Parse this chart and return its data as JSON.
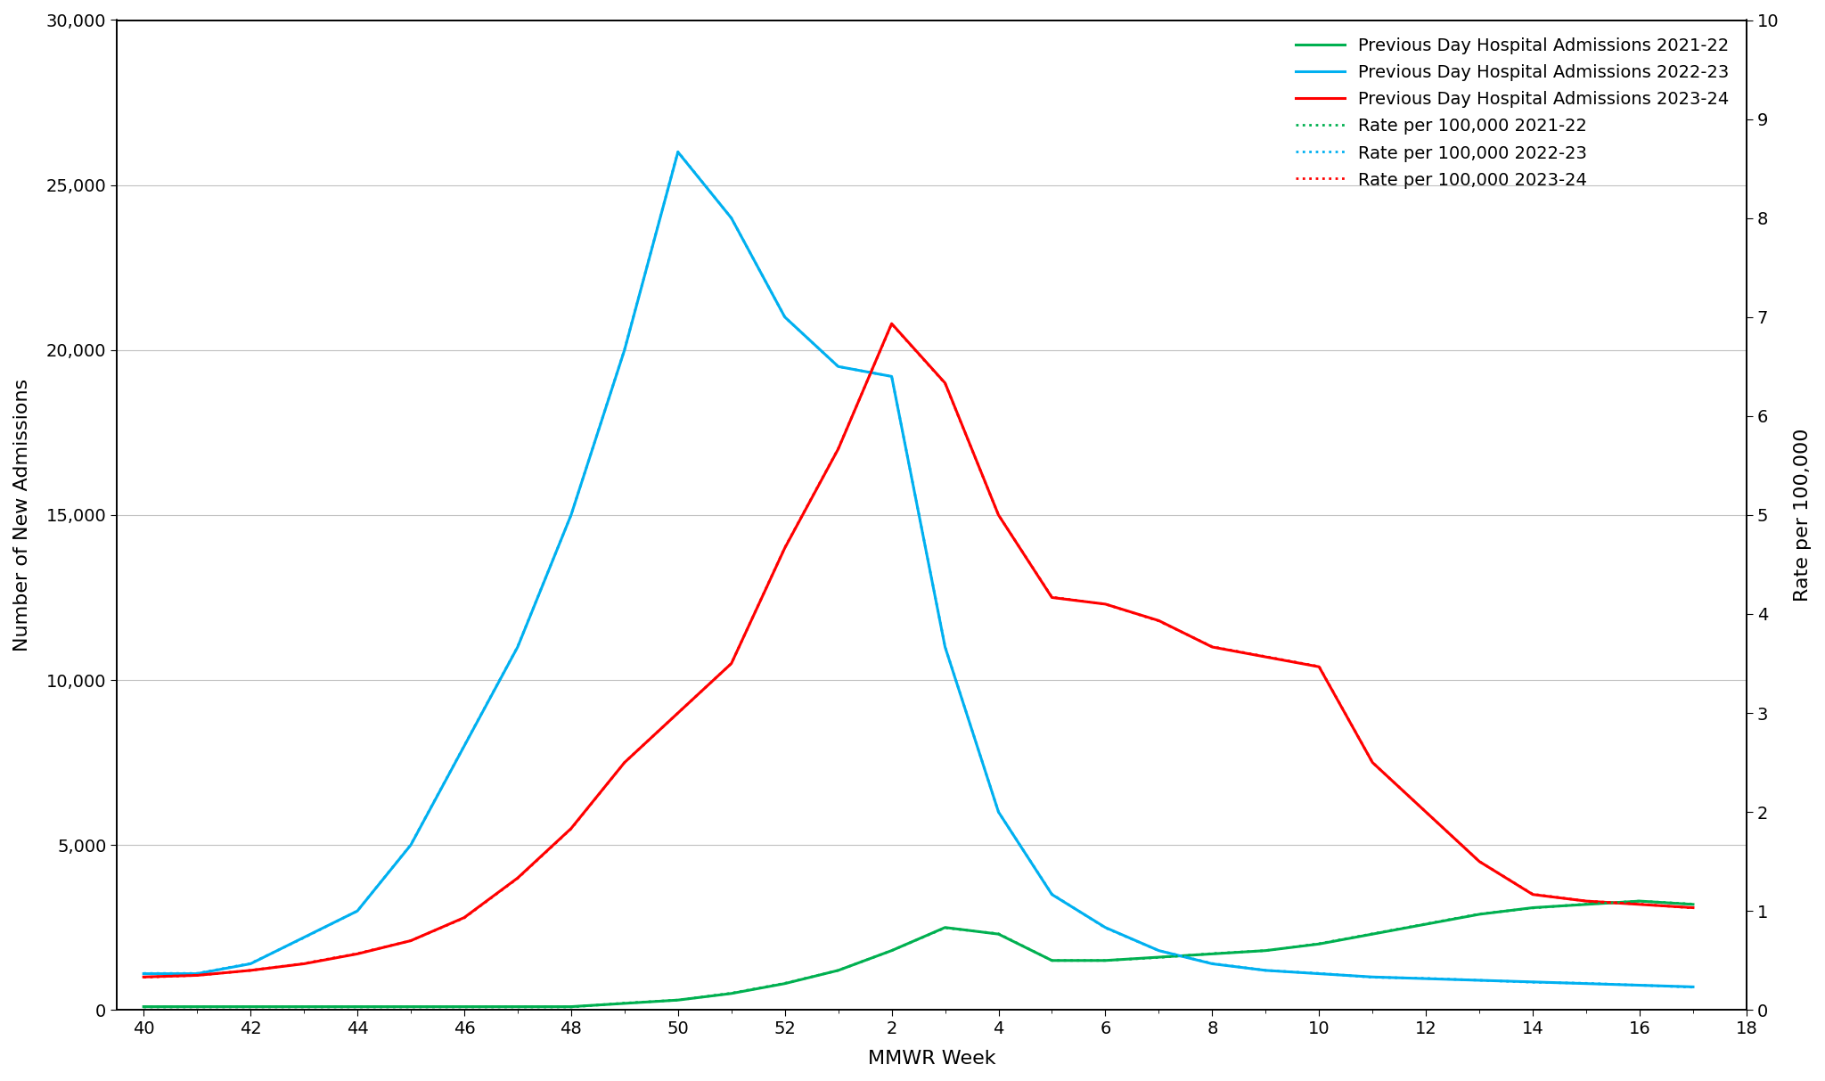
{
  "x_labels": [
    "40",
    "42",
    "44",
    "46",
    "48",
    "50",
    "52",
    "2",
    "4",
    "6",
    "8",
    "10",
    "12",
    "14",
    "16",
    "18"
  ],
  "x_tick_positions": [
    0,
    2,
    4,
    6,
    8,
    10,
    12,
    14,
    16,
    18,
    20,
    22,
    24,
    26,
    28,
    30
  ],
  "x_all": [
    0,
    1,
    2,
    3,
    4,
    5,
    6,
    7,
    8,
    9,
    10,
    11,
    12,
    13,
    14,
    15,
    16,
    17,
    18,
    19,
    20,
    21,
    22,
    23,
    24,
    25,
    26,
    27,
    28,
    29
  ],
  "blue_solid": [
    1100,
    1100,
    1400,
    2200,
    3000,
    5000,
    8000,
    11000,
    15000,
    20000,
    26000,
    24000,
    21000,
    19500,
    19200,
    11000,
    6000,
    3500,
    2500,
    1800,
    1400,
    1200,
    1100,
    1000,
    950,
    900,
    850,
    800,
    750,
    700
  ],
  "red_solid": [
    1000,
    1050,
    1200,
    1400,
    1700,
    2100,
    2800,
    4000,
    5500,
    7500,
    9000,
    10500,
    14000,
    17000,
    20800,
    19000,
    15000,
    12500,
    12300,
    11800,
    11000,
    10700,
    10400,
    7500,
    6000,
    4500,
    3500,
    3300,
    3200,
    3100
  ],
  "green_solid": [
    100,
    100,
    100,
    100,
    100,
    100,
    100,
    100,
    100,
    200,
    300,
    500,
    800,
    1200,
    1800,
    2500,
    2300,
    1500,
    1500,
    1600,
    1700,
    1800,
    2000,
    2300,
    2600,
    2900,
    3100,
    3200,
    3300,
    3200
  ],
  "blue_dot": [
    0.37,
    0.37,
    0.47,
    0.73,
    1.0,
    1.67,
    2.67,
    3.67,
    5.0,
    6.67,
    8.67,
    8.0,
    7.0,
    6.5,
    6.4,
    3.67,
    2.0,
    1.17,
    0.83,
    0.6,
    0.47,
    0.4,
    0.37,
    0.33,
    0.32,
    0.3,
    0.28,
    0.27,
    0.25,
    0.23
  ],
  "red_dot": [
    0.33,
    0.35,
    0.4,
    0.47,
    0.57,
    0.7,
    0.93,
    1.33,
    1.83,
    2.5,
    3.0,
    3.5,
    4.67,
    5.67,
    6.93,
    6.33,
    5.0,
    4.17,
    4.1,
    3.93,
    3.67,
    3.57,
    3.47,
    2.5,
    2.0,
    1.5,
    1.17,
    1.1,
    1.07,
    1.03
  ],
  "green_dot": [
    0.03,
    0.03,
    0.03,
    0.03,
    0.03,
    0.03,
    0.03,
    0.03,
    0.03,
    0.07,
    0.1,
    0.17,
    0.27,
    0.4,
    0.6,
    0.83,
    0.77,
    0.5,
    0.5,
    0.53,
    0.57,
    0.6,
    0.67,
    0.77,
    0.87,
    0.97,
    1.03,
    1.07,
    1.1,
    1.07
  ],
  "green_color": "#00b050",
  "blue_color": "#00b0f0",
  "red_color": "#ff0000",
  "ylabel_left": "Number of New Admissions",
  "ylabel_right": "Rate per 100,000",
  "xlabel": "MMWR Week",
  "ylim_left": [
    0,
    30000
  ],
  "ylim_right": [
    0,
    10
  ],
  "yticks_left": [
    0,
    5000,
    10000,
    15000,
    20000,
    25000,
    30000
  ],
  "yticks_right": [
    0,
    1,
    2,
    3,
    4,
    5,
    6,
    7,
    8,
    9,
    10
  ],
  "legend_entries": [
    {
      "label": "Previous Day Hospital Admissions 2021-22",
      "color": "#00b050",
      "style": "solid"
    },
    {
      "label": "Previous Day Hospital Admissions 2022-23",
      "color": "#00b0f0",
      "style": "solid"
    },
    {
      "label": "Previous Day Hospital Admissions 2023-24",
      "color": "#ff0000",
      "style": "solid"
    },
    {
      "label": "Rate per 100,000 2021-22",
      "color": "#00b050",
      "style": "dotted"
    },
    {
      "label": "Rate per 100,000 2022-23",
      "color": "#00b0f0",
      "style": "dotted"
    },
    {
      "label": "Rate per 100,000 2023-24",
      "color": "#ff0000",
      "style": "dotted"
    }
  ],
  "background_color": "#ffffff",
  "linewidth": 2.2,
  "dot_linewidth": 2.0
}
